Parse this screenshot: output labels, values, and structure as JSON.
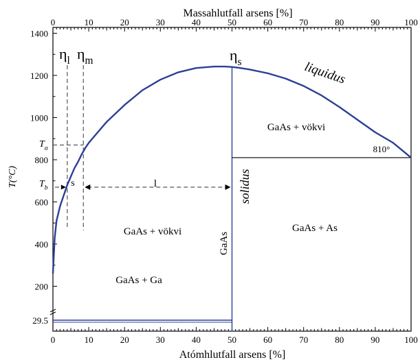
{
  "chart_data": {
    "type": "line",
    "top_axis_title": "Massahlutfall arsens [%]",
    "bottom_axis_title": "Atómhlutfall arsens [%]",
    "y_axis_title": "T(°C)",
    "x_ticks": [
      0,
      10,
      20,
      30,
      40,
      50,
      60,
      70,
      80,
      90,
      100
    ],
    "top_x_ticks": [
      0,
      10,
      20,
      30,
      40,
      50,
      60,
      70,
      80,
      90,
      100
    ],
    "y_ticks": [
      1400,
      1200,
      1000,
      800,
      600,
      400,
      200,
      "29.5"
    ],
    "xlim": [
      0,
      100
    ],
    "series": [
      {
        "name": "liquidus",
        "color": "#2a3f96",
        "x": [
          0,
          0.5,
          1,
          2,
          3,
          4,
          5,
          6,
          7,
          8,
          9,
          10,
          12,
          15,
          20,
          25,
          30,
          35,
          40,
          45,
          48,
          50,
          52,
          55,
          60,
          65,
          70,
          75,
          80,
          85,
          90,
          95,
          100
        ],
        "y": [
          260,
          430,
          510,
          580,
          630,
          680,
          720,
          760,
          790,
          825,
          855,
          880,
          920,
          980,
          1060,
          1130,
          1180,
          1215,
          1235,
          1242,
          1242,
          1240,
          1236,
          1228,
          1210,
          1185,
          1150,
          1105,
          1050,
          990,
          930,
          880,
          810
        ]
      }
    ],
    "reference_lines": {
      "gaas_composition_x": 50,
      "ga_eutectic_T": 29.5,
      "as_eutectic_T": 810,
      "eta_l_x": 4,
      "eta_m_x": 8.5,
      "Ta": 870,
      "Tb": 670
    },
    "annotations": {
      "eta_l": "η",
      "eta_l_sub": "l",
      "eta_m": "η",
      "eta_m_sub": "m",
      "eta_s": "η",
      "eta_s_sub": "s",
      "Ta_label": "T",
      "Ta_sub": "a",
      "Tb_label": "T",
      "Tb_sub": "b",
      "s_label": "s",
      "l_label": "l",
      "liquidus_label": "liquidus",
      "solidus_label": "solidus",
      "gaas_line_label": "GaAs",
      "region_right_liquid": "GaAs + vökvi",
      "region_left_liquid": "GaAs + vökvi",
      "region_right_solid": "GaAs + As",
      "region_left_solid": "GaAs + Ga",
      "eutectic_as_label": "810°"
    }
  }
}
